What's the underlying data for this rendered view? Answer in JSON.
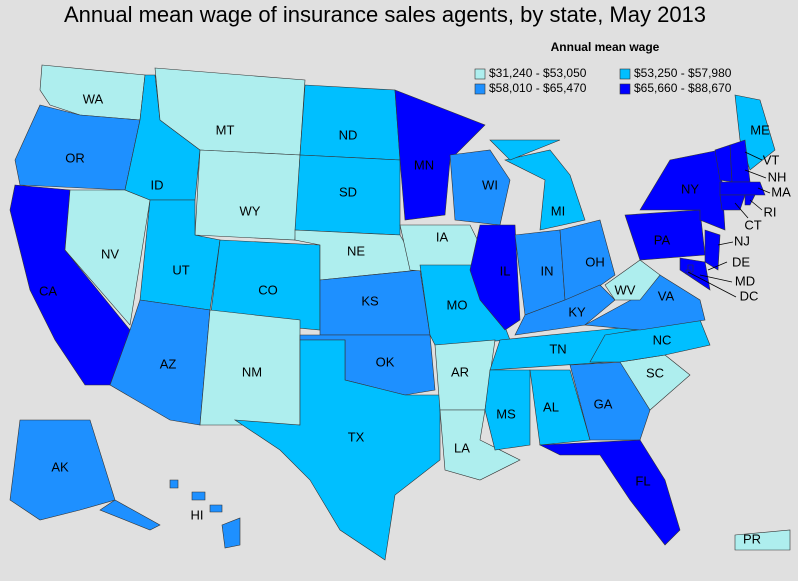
{
  "title": "Annual mean wage of insurance sales agents, by state, May 2013",
  "legend": {
    "title": "Annual mean wage",
    "items": [
      {
        "label": "$31,240 - $53,050",
        "color": "#aeeeee"
      },
      {
        "label": "$53,250 - $57,980",
        "color": "#00bfff"
      },
      {
        "label": "$58,010 - $65,470",
        "color": "#1e90ff"
      },
      {
        "label": "$65,660 - $88,670",
        "color": "#0000ff"
      }
    ]
  },
  "states": [
    {
      "label": "WA",
      "color": "#aeeeee"
    },
    {
      "label": "OR",
      "color": "#1e90ff"
    },
    {
      "label": "CA",
      "color": "#0000ff"
    },
    {
      "label": "NV",
      "color": "#aeeeee"
    },
    {
      "label": "ID",
      "color": "#00bfff"
    },
    {
      "label": "MT",
      "color": "#aeeeee"
    },
    {
      "label": "WY",
      "color": "#aeeeee"
    },
    {
      "label": "UT",
      "color": "#00bfff"
    },
    {
      "label": "CO",
      "color": "#00bfff"
    },
    {
      "label": "AZ",
      "color": "#1e90ff"
    },
    {
      "label": "NM",
      "color": "#aeeeee"
    },
    {
      "label": "ND",
      "color": "#00bfff"
    },
    {
      "label": "SD",
      "color": "#00bfff"
    },
    {
      "label": "NE",
      "color": "#aeeeee"
    },
    {
      "label": "KS",
      "color": "#1e90ff"
    },
    {
      "label": "OK",
      "color": "#1e90ff"
    },
    {
      "label": "TX",
      "color": "#00bfff"
    },
    {
      "label": "MN",
      "color": "#0000ff"
    },
    {
      "label": "IA",
      "color": "#aeeeee"
    },
    {
      "label": "MO",
      "color": "#00bfff"
    },
    {
      "label": "AR",
      "color": "#aeeeee"
    },
    {
      "label": "LA",
      "color": "#aeeeee"
    },
    {
      "label": "WI",
      "color": "#1e90ff"
    },
    {
      "label": "IL",
      "color": "#0000ff"
    },
    {
      "label": "MI",
      "color": "#00bfff"
    },
    {
      "label": "IN",
      "color": "#1e90ff"
    },
    {
      "label": "OH",
      "color": "#1e90ff"
    },
    {
      "label": "KY",
      "color": "#1e90ff"
    },
    {
      "label": "TN",
      "color": "#00bfff"
    },
    {
      "label": "MS",
      "color": "#00bfff"
    },
    {
      "label": "AL",
      "color": "#00bfff"
    },
    {
      "label": "GA",
      "color": "#1e90ff"
    },
    {
      "label": "FL",
      "color": "#0000ff"
    },
    {
      "label": "SC",
      "color": "#aeeeee"
    },
    {
      "label": "NC",
      "color": "#00bfff"
    },
    {
      "label": "VA",
      "color": "#1e90ff"
    },
    {
      "label": "WV",
      "color": "#aeeeee"
    },
    {
      "label": "PA",
      "color": "#0000ff"
    },
    {
      "label": "NY",
      "color": "#0000ff"
    },
    {
      "label": "NJ",
      "color": "#0000ff"
    },
    {
      "label": "DE",
      "color": "#0000ff"
    },
    {
      "label": "MD",
      "color": "#0000ff"
    },
    {
      "label": "DC",
      "color": "#0000ff"
    },
    {
      "label": "ME",
      "color": "#00bfff"
    },
    {
      "label": "VT",
      "color": "#0000ff"
    },
    {
      "label": "NH",
      "color": "#0000ff"
    },
    {
      "label": "MA",
      "color": "#0000ff"
    },
    {
      "label": "CT",
      "color": "#0000ff"
    },
    {
      "label": "RI",
      "color": "#0000ff"
    },
    {
      "label": "AK",
      "color": "#1e90ff"
    },
    {
      "label": "HI",
      "color": "#1e90ff"
    },
    {
      "label": "PR",
      "color": "#aeeeee"
    }
  ]
}
